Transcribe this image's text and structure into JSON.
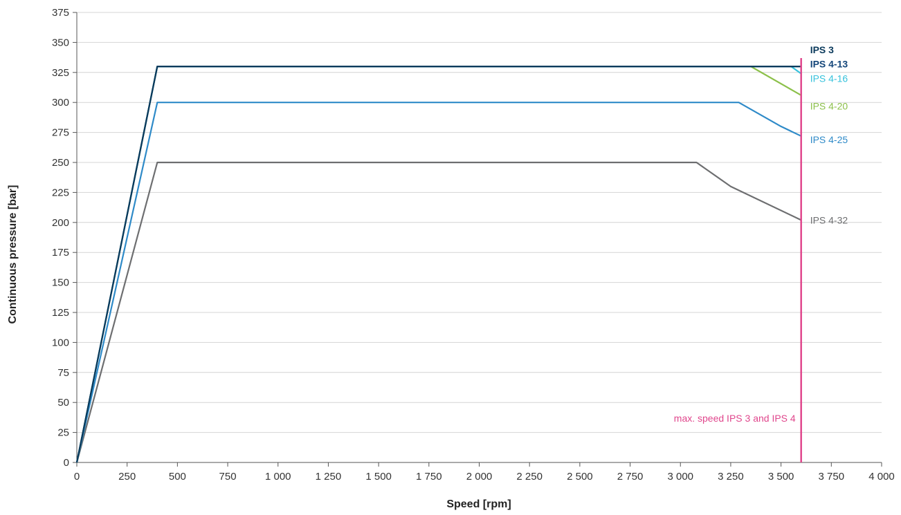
{
  "chart_data": {
    "type": "line",
    "title": "",
    "xlabel": "Speed [rpm]",
    "ylabel": "Continuous pressure [bar]",
    "xlim": [
      0,
      4000
    ],
    "ylim": [
      0,
      375
    ],
    "grid": true,
    "x_ticks": [
      0,
      250,
      500,
      750,
      1000,
      1250,
      1500,
      1750,
      2000,
      2250,
      2500,
      2750,
      3000,
      3250,
      3500,
      3750,
      4000
    ],
    "x_tick_labels": [
      "0",
      "250",
      "500",
      "750",
      "1 000",
      "1 250",
      "1 500",
      "1 750",
      "2 000",
      "2 250",
      "2 500",
      "2 750",
      "3 000",
      "3 250",
      "3 500",
      "3 750",
      "4 000"
    ],
    "y_ticks": [
      0,
      25,
      50,
      75,
      100,
      125,
      150,
      175,
      200,
      225,
      250,
      275,
      300,
      325,
      350,
      375
    ],
    "y_tick_labels": [
      "0",
      "25",
      "50",
      "75",
      "100",
      "125",
      "150",
      "175",
      "200",
      "225",
      "250",
      "275",
      "300",
      "325",
      "350",
      "375"
    ],
    "series": [
      {
        "name": "IPS 4-32",
        "color": "#6d6e70",
        "x": [
          0,
          400,
          3080,
          3250,
          3600
        ],
        "y": [
          0,
          250,
          250,
          230,
          202
        ]
      },
      {
        "name": "IPS 4-25",
        "color": "#2e8ac8",
        "x": [
          0,
          400,
          3290,
          3500,
          3600
        ],
        "y": [
          0,
          300,
          300,
          280,
          272
        ]
      },
      {
        "name": "IPS 4-20",
        "color": "#8cc04a",
        "x": [
          0,
          400,
          3350,
          3600
        ],
        "y": [
          0,
          330,
          330,
          306
        ]
      },
      {
        "name": "IPS 4-16",
        "color": "#36c2dc",
        "x": [
          0,
          400,
          3550,
          3600
        ],
        "y": [
          0,
          330,
          330,
          324
        ]
      },
      {
        "name": "IPS 4-13",
        "color": "#14467a",
        "x": [
          0,
          400,
          3600
        ],
        "y": [
          0,
          330,
          330
        ]
      },
      {
        "name": "IPS 3",
        "color": "#0b3a5c",
        "x": [
          0,
          400,
          3600
        ],
        "y": [
          0,
          330,
          330
        ]
      }
    ],
    "series_label_y": [
      {
        "name": "IPS 3",
        "y": 344
      },
      {
        "name": "IPS 4-13",
        "y": 332
      },
      {
        "name": "IPS 4-16",
        "y": 320
      },
      {
        "name": "IPS 4-20",
        "y": 297
      },
      {
        "name": "IPS 4-25",
        "y": 269
      },
      {
        "name": "IPS 4-32",
        "y": 202
      }
    ],
    "max_speed_line": {
      "x": 3600,
      "y_range": [
        0,
        337
      ],
      "label": "max. speed IPS 3 and IPS 4",
      "label_y": 37,
      "color": "#e0468c"
    }
  }
}
